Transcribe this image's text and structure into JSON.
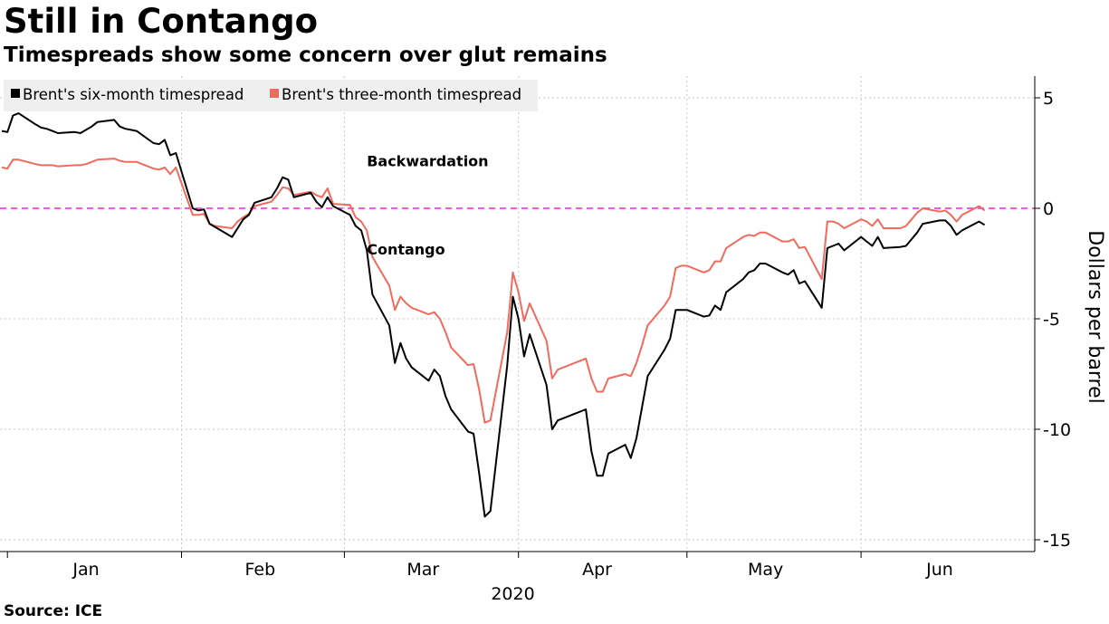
{
  "header": {
    "title": "Still in Contango",
    "subtitle": "Timespreads show some concern over glut remains"
  },
  "footer": {
    "source": "Source: ICE"
  },
  "chart_data": {
    "type": "line",
    "title": "Still in Contango",
    "subtitle": "Timespreads show some concern over glut remains",
    "ylabel": "Dollars per barrel",
    "xlabel": "2020",
    "ylim": [
      -15.5,
      6
    ],
    "yticks": [
      5,
      0,
      -5,
      -10,
      -15
    ],
    "ytick_labels": [
      "5",
      "0",
      "-5",
      "-10",
      "-15"
    ],
    "month_labels": [
      {
        "label": "Jan",
        "date": "2020-01-15"
      },
      {
        "label": "Feb",
        "date": "2020-02-15"
      },
      {
        "label": "Mar",
        "date": "2020-03-15"
      },
      {
        "label": "Apr",
        "date": "2020-04-15"
      },
      {
        "label": "May",
        "date": "2020-05-15"
      },
      {
        "label": "Jun",
        "date": "2020-06-15"
      }
    ],
    "year_label": "2020",
    "x_range": [
      "2019-12-31",
      "2020-06-30"
    ],
    "grid": true,
    "legend_position": "top-left",
    "reference_line": {
      "y": 0,
      "color": "#f05adc",
      "style": "dashed"
    },
    "annotations": [
      {
        "text": "Backwardation",
        "date": "2020-03-05",
        "y": 1.9
      },
      {
        "text": "Contango",
        "date": "2020-03-05",
        "y": -2.1
      }
    ],
    "series": [
      {
        "name": "Brent's six-month timespread",
        "color": "#000000",
        "points": [
          [
            "2019-12-31",
            3.5
          ],
          [
            "2020-01-01",
            3.45
          ],
          [
            "2020-01-02",
            4.2
          ],
          [
            "2020-01-03",
            4.3
          ],
          [
            "2020-01-06",
            3.8
          ],
          [
            "2020-01-07",
            3.65
          ],
          [
            "2020-01-08",
            3.6
          ],
          [
            "2020-01-09",
            3.5
          ],
          [
            "2020-01-10",
            3.4
          ],
          [
            "2020-01-13",
            3.45
          ],
          [
            "2020-01-14",
            3.4
          ],
          [
            "2020-01-15",
            3.55
          ],
          [
            "2020-01-16",
            3.7
          ],
          [
            "2020-01-17",
            3.9
          ],
          [
            "2020-01-20",
            4.0
          ],
          [
            "2020-01-21",
            3.7
          ],
          [
            "2020-01-22",
            3.6
          ],
          [
            "2020-01-23",
            3.55
          ],
          [
            "2020-01-24",
            3.5
          ],
          [
            "2020-01-27",
            2.95
          ],
          [
            "2020-01-28",
            2.9
          ],
          [
            "2020-01-29",
            3.1
          ],
          [
            "2020-01-30",
            2.4
          ],
          [
            "2020-01-31",
            2.5
          ],
          [
            "2020-02-03",
            0.0
          ],
          [
            "2020-02-04",
            -0.1
          ],
          [
            "2020-02-05",
            -0.05
          ],
          [
            "2020-02-06",
            -0.7
          ],
          [
            "2020-02-07",
            -0.85
          ],
          [
            "2020-02-10",
            -1.3
          ],
          [
            "2020-02-11",
            -0.9
          ],
          [
            "2020-02-12",
            -0.5
          ],
          [
            "2020-02-13",
            -0.3
          ],
          [
            "2020-02-14",
            0.25
          ],
          [
            "2020-02-17",
            0.5
          ],
          [
            "2020-02-18",
            0.9
          ],
          [
            "2020-02-19",
            1.4
          ],
          [
            "2020-02-20",
            1.3
          ],
          [
            "2020-02-21",
            0.5
          ],
          [
            "2020-02-24",
            0.7
          ],
          [
            "2020-02-25",
            0.3
          ],
          [
            "2020-02-26",
            0.05
          ],
          [
            "2020-02-27",
            0.5
          ],
          [
            "2020-02-28",
            0.1
          ],
          [
            "2020-03-02",
            -0.3
          ],
          [
            "2020-03-03",
            -0.8
          ],
          [
            "2020-03-04",
            -1.0
          ],
          [
            "2020-03-05",
            -1.9
          ],
          [
            "2020-03-06",
            -3.9
          ],
          [
            "2020-03-09",
            -5.3
          ],
          [
            "2020-03-10",
            -7.0
          ],
          [
            "2020-03-11",
            -6.1
          ],
          [
            "2020-03-12",
            -6.8
          ],
          [
            "2020-03-13",
            -7.2
          ],
          [
            "2020-03-16",
            -7.8
          ],
          [
            "2020-03-17",
            -7.3
          ],
          [
            "2020-03-18",
            -7.6
          ],
          [
            "2020-03-19",
            -8.5
          ],
          [
            "2020-03-20",
            -9.1
          ],
          [
            "2020-03-23",
            -10.1
          ],
          [
            "2020-03-24",
            -10.2
          ],
          [
            "2020-03-25",
            -12.0
          ],
          [
            "2020-03-26",
            -13.95
          ],
          [
            "2020-03-27",
            -13.7
          ],
          [
            "2020-03-30",
            -7.1
          ],
          [
            "2020-03-31",
            -4.0
          ],
          [
            "2020-04-01",
            -5.0
          ],
          [
            "2020-04-02",
            -6.7
          ],
          [
            "2020-04-03",
            -5.7
          ],
          [
            "2020-04-06",
            -8.0
          ],
          [
            "2020-04-07",
            -10.0
          ],
          [
            "2020-04-08",
            -9.6
          ],
          [
            "2020-04-09",
            -9.5
          ],
          [
            "2020-04-13",
            -9.1
          ],
          [
            "2020-04-14",
            -11.0
          ],
          [
            "2020-04-15",
            -12.1
          ],
          [
            "2020-04-16",
            -12.1
          ],
          [
            "2020-04-17",
            -11.1
          ],
          [
            "2020-04-20",
            -10.7
          ],
          [
            "2020-04-21",
            -11.3
          ],
          [
            "2020-04-22",
            -10.4
          ],
          [
            "2020-04-23",
            -9.0
          ],
          [
            "2020-04-24",
            -7.6
          ],
          [
            "2020-04-27",
            -6.4
          ],
          [
            "2020-04-28",
            -5.9
          ],
          [
            "2020-04-29",
            -4.6
          ],
          [
            "2020-04-30",
            -4.6
          ],
          [
            "2020-05-01",
            -4.6
          ],
          [
            "2020-05-04",
            -4.9
          ],
          [
            "2020-05-05",
            -4.85
          ],
          [
            "2020-05-06",
            -4.4
          ],
          [
            "2020-05-07",
            -4.6
          ],
          [
            "2020-05-08",
            -3.8
          ],
          [
            "2020-05-11",
            -3.2
          ],
          [
            "2020-05-12",
            -2.9
          ],
          [
            "2020-05-13",
            -2.8
          ],
          [
            "2020-05-14",
            -2.5
          ],
          [
            "2020-05-15",
            -2.5
          ],
          [
            "2020-05-18",
            -2.9
          ],
          [
            "2020-05-19",
            -3.0
          ],
          [
            "2020-05-20",
            -2.8
          ],
          [
            "2020-05-21",
            -3.4
          ],
          [
            "2020-05-22",
            -3.3
          ],
          [
            "2020-05-25",
            -4.5
          ],
          [
            "2020-05-26",
            -1.8
          ],
          [
            "2020-05-27",
            -1.7
          ],
          [
            "2020-05-28",
            -1.6
          ],
          [
            "2020-05-29",
            -1.9
          ],
          [
            "2020-06-01",
            -1.3
          ],
          [
            "2020-06-02",
            -1.5
          ],
          [
            "2020-06-03",
            -1.7
          ],
          [
            "2020-06-04",
            -1.3
          ],
          [
            "2020-06-05",
            -1.8
          ],
          [
            "2020-06-08",
            -1.75
          ],
          [
            "2020-06-09",
            -1.7
          ],
          [
            "2020-06-10",
            -1.4
          ],
          [
            "2020-06-11",
            -1.1
          ],
          [
            "2020-06-12",
            -0.7
          ],
          [
            "2020-06-15",
            -0.55
          ],
          [
            "2020-06-16",
            -0.55
          ],
          [
            "2020-06-17",
            -0.8
          ],
          [
            "2020-06-18",
            -1.2
          ],
          [
            "2020-06-19",
            -1.0
          ],
          [
            "2020-06-22",
            -0.6
          ],
          [
            "2020-06-23",
            -0.75
          ]
        ]
      },
      {
        "name": "Brent's three-month timespread",
        "color": "#f06b5e",
        "points": [
          [
            "2019-12-31",
            1.85
          ],
          [
            "2020-01-01",
            1.8
          ],
          [
            "2020-01-02",
            2.2
          ],
          [
            "2020-01-03",
            2.2
          ],
          [
            "2020-01-06",
            2.0
          ],
          [
            "2020-01-07",
            1.95
          ],
          [
            "2020-01-08",
            1.95
          ],
          [
            "2020-01-09",
            1.95
          ],
          [
            "2020-01-10",
            1.9
          ],
          [
            "2020-01-13",
            1.95
          ],
          [
            "2020-01-14",
            1.95
          ],
          [
            "2020-01-15",
            2.0
          ],
          [
            "2020-01-16",
            2.1
          ],
          [
            "2020-01-17",
            2.2
          ],
          [
            "2020-01-20",
            2.25
          ],
          [
            "2020-01-21",
            2.15
          ],
          [
            "2020-01-22",
            2.1
          ],
          [
            "2020-01-23",
            2.1
          ],
          [
            "2020-01-24",
            2.1
          ],
          [
            "2020-01-27",
            1.8
          ],
          [
            "2020-01-28",
            1.75
          ],
          [
            "2020-01-29",
            1.85
          ],
          [
            "2020-01-30",
            1.55
          ],
          [
            "2020-01-31",
            1.85
          ],
          [
            "2020-02-03",
            -0.3
          ],
          [
            "2020-02-04",
            -0.3
          ],
          [
            "2020-02-05",
            -0.25
          ],
          [
            "2020-02-06",
            -0.7
          ],
          [
            "2020-02-07",
            -0.8
          ],
          [
            "2020-02-10",
            -0.9
          ],
          [
            "2020-02-11",
            -0.6
          ],
          [
            "2020-02-12",
            -0.4
          ],
          [
            "2020-02-13",
            -0.25
          ],
          [
            "2020-02-14",
            0.1
          ],
          [
            "2020-02-17",
            0.3
          ],
          [
            "2020-02-18",
            0.6
          ],
          [
            "2020-02-19",
            0.95
          ],
          [
            "2020-02-20",
            0.9
          ],
          [
            "2020-02-21",
            0.6
          ],
          [
            "2020-02-24",
            0.75
          ],
          [
            "2020-02-25",
            0.6
          ],
          [
            "2020-02-26",
            0.5
          ],
          [
            "2020-02-27",
            0.9
          ],
          [
            "2020-02-28",
            0.2
          ],
          [
            "2020-03-02",
            0.15
          ],
          [
            "2020-03-03",
            -0.4
          ],
          [
            "2020-03-04",
            -0.6
          ],
          [
            "2020-03-05",
            -1.0
          ],
          [
            "2020-03-06",
            -2.2
          ],
          [
            "2020-03-09",
            -3.5
          ],
          [
            "2020-03-10",
            -4.6
          ],
          [
            "2020-03-11",
            -4.0
          ],
          [
            "2020-03-12",
            -4.3
          ],
          [
            "2020-03-13",
            -4.5
          ],
          [
            "2020-03-16",
            -4.8
          ],
          [
            "2020-03-17",
            -4.7
          ],
          [
            "2020-03-18",
            -5.0
          ],
          [
            "2020-03-19",
            -5.6
          ],
          [
            "2020-03-20",
            -6.3
          ],
          [
            "2020-03-23",
            -7.1
          ],
          [
            "2020-03-24",
            -7.05
          ],
          [
            "2020-03-25",
            -8.2
          ],
          [
            "2020-03-26",
            -9.7
          ],
          [
            "2020-03-27",
            -9.6
          ],
          [
            "2020-03-30",
            -5.6
          ],
          [
            "2020-03-31",
            -2.9
          ],
          [
            "2020-04-01",
            -3.8
          ],
          [
            "2020-04-02",
            -5.1
          ],
          [
            "2020-04-03",
            -4.3
          ],
          [
            "2020-04-06",
            -6.0
          ],
          [
            "2020-04-07",
            -7.7
          ],
          [
            "2020-04-08",
            -7.3
          ],
          [
            "2020-04-09",
            -7.2
          ],
          [
            "2020-04-13",
            -6.8
          ],
          [
            "2020-04-14",
            -7.7
          ],
          [
            "2020-04-15",
            -8.3
          ],
          [
            "2020-04-16",
            -8.3
          ],
          [
            "2020-04-17",
            -7.7
          ],
          [
            "2020-04-20",
            -7.5
          ],
          [
            "2020-04-21",
            -7.6
          ],
          [
            "2020-04-22",
            -7.0
          ],
          [
            "2020-04-23",
            -6.2
          ],
          [
            "2020-04-24",
            -5.3
          ],
          [
            "2020-04-27",
            -4.4
          ],
          [
            "2020-04-28",
            -4.0
          ],
          [
            "2020-04-29",
            -2.7
          ],
          [
            "2020-04-30",
            -2.6
          ],
          [
            "2020-05-01",
            -2.6
          ],
          [
            "2020-05-04",
            -2.9
          ],
          [
            "2020-05-05",
            -2.8
          ],
          [
            "2020-05-06",
            -2.4
          ],
          [
            "2020-05-07",
            -2.4
          ],
          [
            "2020-05-08",
            -1.8
          ],
          [
            "2020-05-11",
            -1.3
          ],
          [
            "2020-05-12",
            -1.2
          ],
          [
            "2020-05-13",
            -1.25
          ],
          [
            "2020-05-14",
            -1.1
          ],
          [
            "2020-05-15",
            -1.1
          ],
          [
            "2020-05-18",
            -1.5
          ],
          [
            "2020-05-19",
            -1.5
          ],
          [
            "2020-05-20",
            -1.4
          ],
          [
            "2020-05-21",
            -1.8
          ],
          [
            "2020-05-22",
            -1.75
          ],
          [
            "2020-05-25",
            -3.2
          ],
          [
            "2020-05-26",
            -0.6
          ],
          [
            "2020-05-27",
            -0.6
          ],
          [
            "2020-05-28",
            -0.7
          ],
          [
            "2020-05-29",
            -0.9
          ],
          [
            "2020-06-01",
            -0.5
          ],
          [
            "2020-06-02",
            -0.6
          ],
          [
            "2020-06-03",
            -0.8
          ],
          [
            "2020-06-04",
            -0.5
          ],
          [
            "2020-06-05",
            -0.9
          ],
          [
            "2020-06-08",
            -0.9
          ],
          [
            "2020-06-09",
            -0.8
          ],
          [
            "2020-06-10",
            -0.5
          ],
          [
            "2020-06-11",
            -0.2
          ],
          [
            "2020-06-12",
            0.0
          ],
          [
            "2020-06-15",
            -0.15
          ],
          [
            "2020-06-16",
            -0.1
          ],
          [
            "2020-06-17",
            -0.3
          ],
          [
            "2020-06-18",
            -0.6
          ],
          [
            "2020-06-19",
            -0.3
          ],
          [
            "2020-06-22",
            0.1
          ],
          [
            "2020-06-23",
            -0.1
          ]
        ]
      }
    ]
  }
}
